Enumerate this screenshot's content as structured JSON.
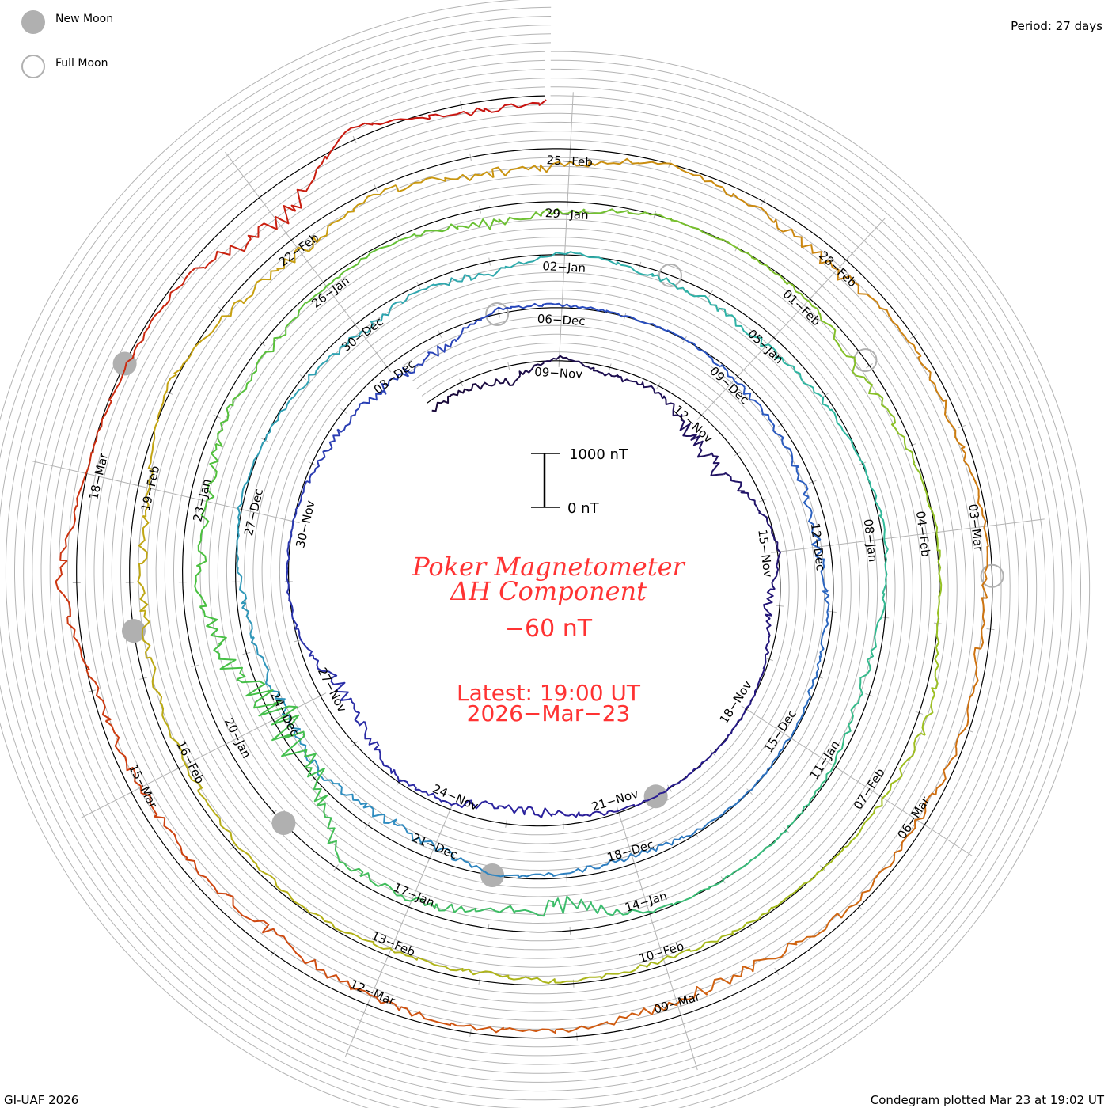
{
  "legend": {
    "new_moon": "New Moon",
    "full_moon": "Full Moon"
  },
  "period_label": "Period: 27 days",
  "footer_left": "GI-UAF 2026",
  "footer_right": "Condegram plotted Mar 23 at 19:02 UT",
  "center": {
    "title_line1": "Poker Magnetometer",
    "title_line2": "ΔH Component",
    "current_value": "−60 nT",
    "latest_line1": "Latest: 19:00 UT",
    "latest_line2": "2026−Mar−23",
    "scale_top": "1000 nT",
    "scale_bottom": "0 nT"
  },
  "colors": {
    "text_red": "#ff3333",
    "grid": "#b4b4b4",
    "moon": "#b0b0b0",
    "series_gradient": [
      "#1a0a3a",
      "#2a1e9a",
      "#2a4ec0",
      "#2f8ec0",
      "#2fb8a0",
      "#48c040",
      "#9ec020",
      "#c8a010",
      "#d06010",
      "#c81010"
    ]
  },
  "chart_data": {
    "type": "line",
    "subtype": "spiral-condegram",
    "title": "Poker Magnetometer ΔH Component",
    "period_days": 27,
    "units": "nT",
    "scale_bar_nT": [
      0,
      1000
    ],
    "reference_date": "2025-11-09",
    "first_value_date": "2025-11-06",
    "plot_start_day": -2.8,
    "plot_end_day": 134.8,
    "daily_values_nT": [
      -200,
      -150,
      -300,
      80,
      -150,
      -100,
      -400,
      -500,
      -150,
      50,
      -250,
      -50,
      0,
      0,
      0,
      -30,
      -200,
      -350,
      -150,
      -50,
      -300,
      -400,
      -50,
      30,
      0,
      -100,
      -200,
      -300,
      -250,
      80,
      50,
      0,
      20,
      -100,
      -150,
      -200,
      -250,
      -100,
      -80,
      -30,
      0,
      -50,
      -150,
      -100,
      0,
      -250,
      -300,
      -150,
      -300,
      -200,
      -100,
      50,
      0,
      -100,
      -200,
      -100,
      -250,
      50,
      -100,
      -150,
      -250,
      -100,
      0,
      60,
      -80,
      -200,
      -50,
      0,
      0,
      -30,
      -500,
      -300,
      -150,
      -200,
      -1000,
      -1200,
      -600,
      -300,
      -400,
      -150,
      -200,
      -100,
      -50,
      -300,
      -200,
      0,
      0,
      -50,
      -250,
      -100,
      30,
      0,
      200,
      100,
      0,
      -50,
      -100,
      -50,
      -150,
      -100,
      -50,
      -100,
      -150,
      -200,
      -250,
      -200,
      100,
      -150,
      -300,
      -100,
      -400,
      -300,
      0,
      -200,
      -300,
      -100,
      -150,
      -50,
      -200,
      -100,
      -150,
      -100,
      -300,
      -300,
      -150,
      -100,
      -150,
      -300,
      -250,
      -200,
      -100,
      300,
      0,
      -50,
      -100,
      -700,
      200,
      -200,
      -100
    ],
    "date_labels": [
      "09−Nov",
      "12−Nov",
      "15−Nov",
      "18−Nov",
      "21−Nov",
      "24−Nov",
      "27−Nov",
      "30−Nov",
      "03−Dec",
      "06−Dec",
      "09−Dec",
      "12−Dec",
      "15−Dec",
      "18−Dec",
      "21−Dec",
      "24−Dec",
      "27−Dec",
      "30−Dec",
      "02−Jan",
      "05−Jan",
      "08−Jan",
      "11−Jan",
      "14−Jan",
      "17−Jan",
      "20−Jan",
      "23−Jan",
      "26−Jan",
      "29−Jan",
      "01−Feb",
      "04−Feb",
      "07−Feb",
      "10−Feb",
      "13−Feb",
      "16−Feb",
      "19−Feb",
      "22−Feb",
      "25−Feb",
      "28−Feb",
      "03−Mar",
      "06−Mar",
      "09−Mar",
      "12−Mar",
      "15−Mar",
      "18−Mar"
    ],
    "label_interval_days": 3,
    "new_moons": [
      "2025-11-20T06:47Z",
      "2025-12-20T01:43Z",
      "2026-01-18T19:52Z",
      "2026-02-17T12:01Z",
      "2026-03-19T01:23Z"
    ],
    "full_moons": [
      "2025-12-04T23:14Z",
      "2026-01-03T10:03Z",
      "2026-02-01T22:09Z",
      "2026-03-03T11:38Z"
    ]
  }
}
